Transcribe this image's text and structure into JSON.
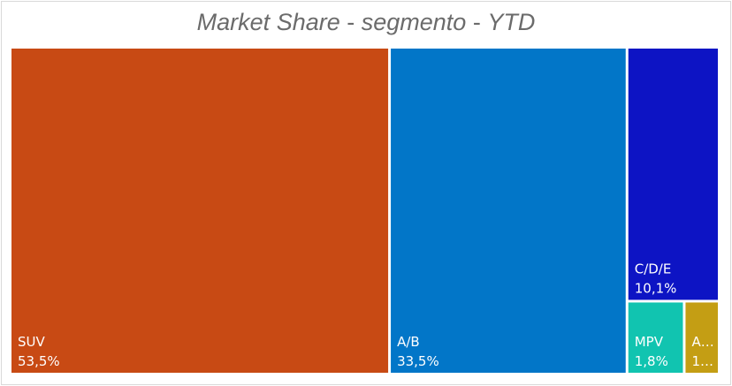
{
  "title": {
    "part1": "Market Share",
    "sep1": " - ",
    "part2": "segmento",
    "sep2": " - ",
    "part3": "YTD"
  },
  "chart_data": {
    "type": "treemap",
    "title": "Market Share - segmento - YTD",
    "items": [
      {
        "name": "SUV",
        "value": 53.5,
        "label": "SUV",
        "value_label": "53,5%",
        "color": "#C84A14"
      },
      {
        "name": "A/B",
        "value": 33.5,
        "label": "A/B",
        "value_label": "33,5%",
        "color": "#0276C8"
      },
      {
        "name": "C/D/E",
        "value": 10.1,
        "label": "C/D/E",
        "value_label": "10,1%",
        "color": "#0D14C4"
      },
      {
        "name": "MPV",
        "value": 1.8,
        "label": "MPV",
        "value_label": "1,8%",
        "color": "#11C4B0"
      },
      {
        "name": "A…",
        "value": 1.1,
        "label": "A…",
        "value_label": "1…",
        "color": "#C49E14"
      }
    ]
  }
}
